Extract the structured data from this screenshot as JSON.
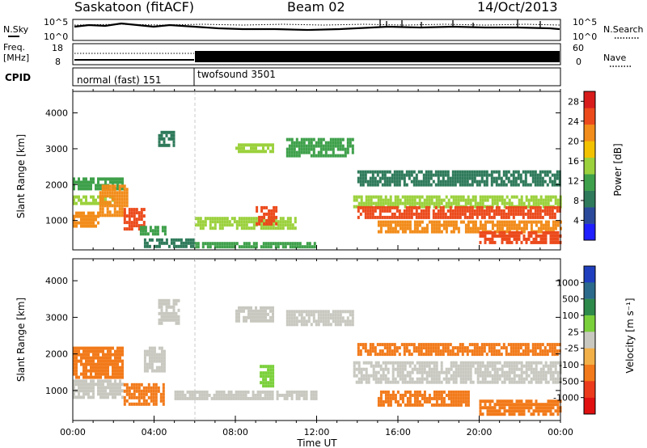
{
  "header": {
    "station": "Saskatoon (fitACF)",
    "beam": "Beam 02",
    "date": "14/Oct/2013"
  },
  "noise_panel": {
    "left_label": "N.Sky",
    "left_ticks": [
      "10^5",
      "10^0"
    ],
    "right_ticks": [
      "10^5",
      "10^0"
    ],
    "right_label": "N.Search",
    "right_legend_line": "dotted"
  },
  "freq_panel": {
    "left_label_1": "Freq.",
    "left_label_2": "[MHz]",
    "left_ticks": [
      "18",
      "8"
    ],
    "right_ticks": [
      "60",
      "0"
    ],
    "right_label": "Nave",
    "right_legend_line": "dotted"
  },
  "cpid_panel": {
    "label": "CPID",
    "modes": [
      {
        "name": "normal (fast) 151",
        "start_hour": 0
      },
      {
        "name": "twofsound 3501",
        "start_hour": 6
      }
    ]
  },
  "chart_data": [
    {
      "type": "heatmap",
      "panel": "power",
      "ylabel": "Slant Range [km]",
      "xlabel": "",
      "y_ticks": [
        1000,
        2000,
        3000,
        4000
      ],
      "ylim": [
        180,
        4600
      ],
      "xlim_hours": [
        0,
        24
      ],
      "colorbar": {
        "label": "Power [dB]",
        "ticks": [
          4,
          8,
          12,
          16,
          20,
          24,
          28
        ],
        "range": [
          0,
          30
        ],
        "colors": [
          "#1f1fff",
          "#2b4a9a",
          "#2e7a5a",
          "#3ea04a",
          "#9bd13c",
          "#f2c200",
          "#f28c1a",
          "#ec4a1c",
          "#d81c1c"
        ]
      },
      "bands": [
        {
          "t0": 0.0,
          "t1": 1.3,
          "r0": 850,
          "r1": 1250,
          "level": 20
        },
        {
          "t0": 0.0,
          "t1": 2.0,
          "r0": 1500,
          "r1": 1700,
          "level": 14
        },
        {
          "t0": 0.0,
          "t1": 2.5,
          "r0": 1850,
          "r1": 2200,
          "level": 12
        },
        {
          "t0": 1.3,
          "t1": 2.7,
          "r0": 1100,
          "r1": 2000,
          "level": 22
        },
        {
          "t0": 2.5,
          "t1": 3.5,
          "r0": 750,
          "r1": 1350,
          "level": 26
        },
        {
          "t0": 3.3,
          "t1": 4.5,
          "r0": 650,
          "r1": 850,
          "level": 12
        },
        {
          "t0": 3.5,
          "t1": 6.0,
          "r0": 300,
          "r1": 500,
          "level": 8
        },
        {
          "t0": 4.2,
          "t1": 5.0,
          "r0": 3100,
          "r1": 3500,
          "level": 8
        },
        {
          "t0": 6.0,
          "t1": 11.0,
          "r0": 800,
          "r1": 1100,
          "level": 14
        },
        {
          "t0": 6.0,
          "t1": 12.0,
          "r0": 250,
          "r1": 400,
          "level": 10
        },
        {
          "t0": 9.0,
          "t1": 10.0,
          "r0": 900,
          "r1": 1400,
          "level": 26
        },
        {
          "t0": 8.0,
          "t1": 9.8,
          "r0": 2950,
          "r1": 3150,
          "level": 16
        },
        {
          "t0": 10.5,
          "t1": 13.8,
          "r0": 2800,
          "r1": 3300,
          "level": 12
        },
        {
          "t0": 13.8,
          "t1": 24.0,
          "r0": 1400,
          "r1": 1700,
          "level": 14
        },
        {
          "t0": 14.0,
          "t1": 24.0,
          "r0": 1050,
          "r1": 1400,
          "level": 24
        },
        {
          "t0": 15.0,
          "t1": 24.0,
          "r0": 700,
          "r1": 1000,
          "level": 20
        },
        {
          "t0": 20.0,
          "t1": 24.0,
          "r0": 350,
          "r1": 700,
          "level": 26
        },
        {
          "t0": 14.0,
          "t1": 24.0,
          "r0": 2000,
          "r1": 2400,
          "level": 8
        }
      ]
    },
    {
      "type": "heatmap",
      "panel": "velocity",
      "ylabel": "Slant Range [km]",
      "xlabel": "Time UT",
      "y_ticks": [
        1000,
        2000,
        3000,
        4000
      ],
      "ylim": [
        180,
        4600
      ],
      "xlim_hours": [
        0,
        24
      ],
      "x_ticks": [
        "00:00",
        "04:00",
        "08:00",
        "12:00",
        "16:00",
        "20:00",
        "00:00"
      ],
      "colorbar": {
        "label": "Velocity [m s⁻¹]",
        "ticks": [
          1000,
          500,
          100,
          25,
          -25,
          -100,
          -500,
          -1000
        ],
        "colors": [
          "#1f3fbf",
          "#2b6a8a",
          "#2e8a4a",
          "#7ad03a",
          "#c8c8c0",
          "#f2b048",
          "#f27a1a",
          "#ec3a1c",
          "#e01010"
        ]
      },
      "bands": [
        {
          "t0": 0.0,
          "t1": 2.5,
          "r0": 800,
          "r1": 1300,
          "v": 0
        },
        {
          "t0": 0.0,
          "t1": 2.5,
          "r0": 1400,
          "r1": 2200,
          "v": -150
        },
        {
          "t0": 2.5,
          "t1": 4.5,
          "r0": 600,
          "r1": 1200,
          "v": -300
        },
        {
          "t0": 3.5,
          "t1": 4.5,
          "r0": 1500,
          "r1": 2200,
          "v": 0
        },
        {
          "t0": 4.2,
          "t1": 5.2,
          "r0": 2800,
          "r1": 3500,
          "v": 0
        },
        {
          "t0": 5.0,
          "t1": 12.0,
          "r0": 750,
          "r1": 1000,
          "v": 0
        },
        {
          "t0": 9.2,
          "t1": 9.8,
          "r0": 1100,
          "r1": 1700,
          "v": 80
        },
        {
          "t0": 8.0,
          "t1": 9.8,
          "r0": 2900,
          "r1": 3300,
          "v": 0
        },
        {
          "t0": 10.5,
          "t1": 13.8,
          "r0": 2800,
          "r1": 3200,
          "v": 0
        },
        {
          "t0": 13.8,
          "t1": 24.0,
          "r0": 1200,
          "r1": 1800,
          "v": 0
        },
        {
          "t0": 14.0,
          "t1": 24.0,
          "r0": 2000,
          "r1": 2300,
          "v": -150
        },
        {
          "t0": 15.0,
          "t1": 19.5,
          "r0": 600,
          "r1": 1000,
          "v": -300
        },
        {
          "t0": 20.0,
          "t1": 24.0,
          "r0": 350,
          "r1": 750,
          "v": -300
        }
      ]
    }
  ]
}
